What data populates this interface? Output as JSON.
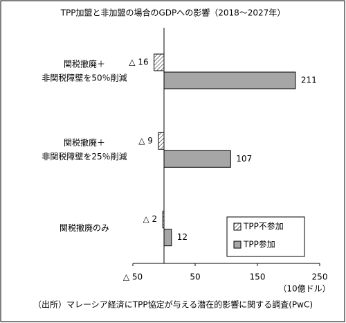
{
  "chart_data": {
    "type": "bar",
    "orientation": "horizontal",
    "title": "TPP加盟と非加盟の場合のGDPへの影響（2018～2027年）",
    "categories": [
      [
        "関税撤廃＋",
        "非関税障壁を50％削減"
      ],
      [
        "関税撤廃＋",
        "非関税障壁を25％削減"
      ],
      [
        "関税撤廃のみ"
      ]
    ],
    "series": [
      {
        "name": "TPP不参加",
        "pattern": "hatch",
        "color": "#000000",
        "values": [
          -16,
          -9,
          -2
        ],
        "value_labels": [
          "△ 16",
          "△ 9",
          "△ 2"
        ]
      },
      {
        "name": "TPP参加",
        "color": "#a6a6a6",
        "values": [
          211,
          107,
          12
        ]
      }
    ],
    "xlim": [
      -50,
      250
    ],
    "xticks": [
      {
        "value": -50,
        "label": "△ 50"
      },
      50,
      150,
      250
    ],
    "x_label": "（10億ドル）",
    "legend": "lower right",
    "source": "（出所）マレーシア経済にTPP協定が与える潜在的影響に関する調査(PwC)"
  }
}
